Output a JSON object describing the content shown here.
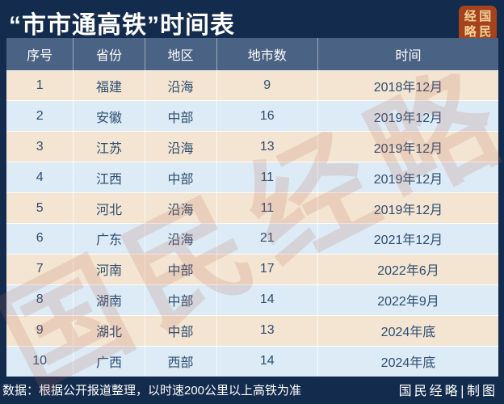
{
  "chart_data": {
    "type": "table",
    "title": "“市市通高铁”时间表",
    "columns": [
      "序号",
      "省份",
      "地区",
      "地市数",
      "时间"
    ],
    "rows": [
      [
        "1",
        "福建",
        "沿海",
        "9",
        "2018年12月"
      ],
      [
        "2",
        "安徽",
        "中部",
        "16",
        "2019年12月"
      ],
      [
        "3",
        "江苏",
        "沿海",
        "13",
        "2019年12月"
      ],
      [
        "4",
        "江西",
        "中部",
        "11",
        "2019年12月"
      ],
      [
        "5",
        "河北",
        "沿海",
        "11",
        "2019年12月"
      ],
      [
        "6",
        "广东",
        "沿海",
        "21",
        "2021年12月"
      ],
      [
        "7",
        "河南",
        "中部",
        "17",
        "2022年6月"
      ],
      [
        "8",
        "湖南",
        "中部",
        "14",
        "2022年9月"
      ],
      [
        "9",
        "湖北",
        "中部",
        "13",
        "2024年底"
      ],
      [
        "10",
        "广西",
        "西部",
        "14",
        "2024年底"
      ]
    ],
    "layout": {
      "row_style": "zebra-striped",
      "header_position": "top",
      "grid": "on"
    }
  },
  "logo": {
    "chars": [
      "经",
      "国",
      "略",
      "民"
    ]
  },
  "watermark_text": "国民经略",
  "footer": {
    "note": "数据：根据公开报道整理，以时速200公里以上高铁为准",
    "credit": "国民经略|制图"
  },
  "colors": {
    "background": "#132b4d",
    "header_row": "#4a6284",
    "row_odd": "#f3e5d1",
    "row_even": "#dcebf5",
    "cell_text": "#2e4d72",
    "header_text": "#ffffff",
    "title_text": "#ffffff",
    "logo_background": "#a5431d",
    "logo_text": "#f2d49c",
    "watermark": "#ba6c56"
  }
}
